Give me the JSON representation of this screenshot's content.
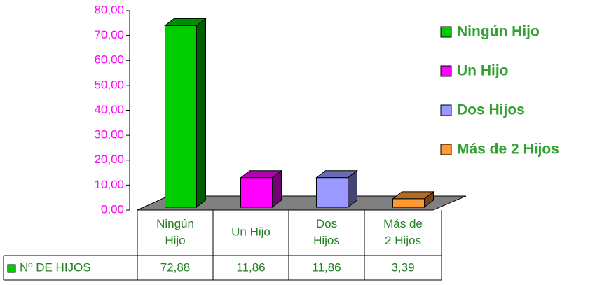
{
  "chart_data": {
    "type": "bar3d",
    "categories": [
      "Ningún Hijo",
      "Un Hijo",
      "Dos Hijos",
      "Más de 2 Hijos"
    ],
    "colors": [
      "#00cc00",
      "#ff00ff",
      "#9999ff",
      "#ff9933"
    ],
    "series": [
      {
        "name": "Nº DE HIJOS",
        "color": "#00cc00",
        "values": [
          72.88,
          11.86,
          11.86,
          3.39
        ],
        "value_labels": [
          "72,88",
          "11,86",
          "11,86",
          "3,39"
        ]
      }
    ],
    "ylim": [
      0,
      80
    ],
    "yticks": [
      {
        "value": 0,
        "label": "0,00"
      },
      {
        "value": 10,
        "label": "10,00"
      },
      {
        "value": 20,
        "label": "20,00"
      },
      {
        "value": 30,
        "label": "30,00"
      },
      {
        "value": 40,
        "label": "40,00"
      },
      {
        "value": 50,
        "label": "50,00"
      },
      {
        "value": 60,
        "label": "60,00"
      },
      {
        "value": 70,
        "label": "70,00"
      },
      {
        "value": 80,
        "label": "80,00"
      }
    ],
    "legend": "right"
  }
}
